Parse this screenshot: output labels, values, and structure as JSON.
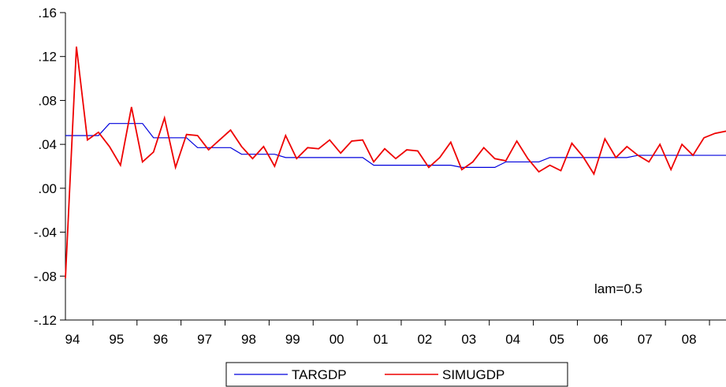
{
  "chart_data": {
    "type": "line",
    "title": "",
    "xlabel": "",
    "ylabel": "",
    "ylim": [
      -0.12,
      0.16
    ],
    "y_ticks": [
      -0.12,
      -0.08,
      -0.04,
      0.0,
      0.04,
      0.08,
      0.12,
      0.16
    ],
    "y_tick_labels": [
      "-.12",
      "-.08",
      "-.04",
      ".00",
      ".04",
      ".08",
      ".12",
      ".16"
    ],
    "x_tick_labels": [
      "94",
      "95",
      "96",
      "97",
      "98",
      "99",
      "00",
      "01",
      "02",
      "03",
      "04",
      "05",
      "06",
      "07",
      "08"
    ],
    "annotation": "lam=0.5",
    "grid": false,
    "legend_position": "bottom-center",
    "series": [
      {
        "name": "TARGDP",
        "color": "#0000dd",
        "values": [
          0.048,
          0.048,
          0.048,
          0.048,
          0.059,
          0.059,
          0.059,
          0.059,
          0.046,
          0.046,
          0.046,
          0.046,
          0.037,
          0.037,
          0.037,
          0.037,
          0.031,
          0.031,
          0.031,
          0.031,
          0.028,
          0.028,
          0.028,
          0.028,
          0.028,
          0.028,
          0.028,
          0.028,
          0.021,
          0.021,
          0.021,
          0.021,
          0.021,
          0.021,
          0.021,
          0.021,
          0.019,
          0.019,
          0.019,
          0.019,
          0.024,
          0.024,
          0.024,
          0.024,
          0.028,
          0.028,
          0.028,
          0.028,
          0.028,
          0.028,
          0.028,
          0.028,
          0.03,
          0.03,
          0.03,
          0.03,
          0.03,
          0.03,
          0.03,
          0.03,
          0.03
        ]
      },
      {
        "name": "SIMUGDP",
        "color": "#ee0000",
        "values": [
          -0.082,
          0.129,
          0.044,
          0.051,
          0.038,
          0.021,
          0.074,
          0.024,
          0.033,
          0.064,
          0.019,
          0.049,
          0.048,
          0.035,
          0.044,
          0.053,
          0.038,
          0.027,
          0.038,
          0.02,
          0.048,
          0.027,
          0.037,
          0.036,
          0.044,
          0.032,
          0.043,
          0.044,
          0.024,
          0.036,
          0.027,
          0.035,
          0.034,
          0.019,
          0.028,
          0.042,
          0.017,
          0.024,
          0.037,
          0.027,
          0.025,
          0.043,
          0.027,
          0.015,
          0.021,
          0.016,
          0.041,
          0.029,
          0.013,
          0.045,
          0.028,
          0.038,
          0.03,
          0.024,
          0.04,
          0.017,
          0.04,
          0.03,
          0.046,
          0.05,
          0.052
        ]
      }
    ]
  }
}
